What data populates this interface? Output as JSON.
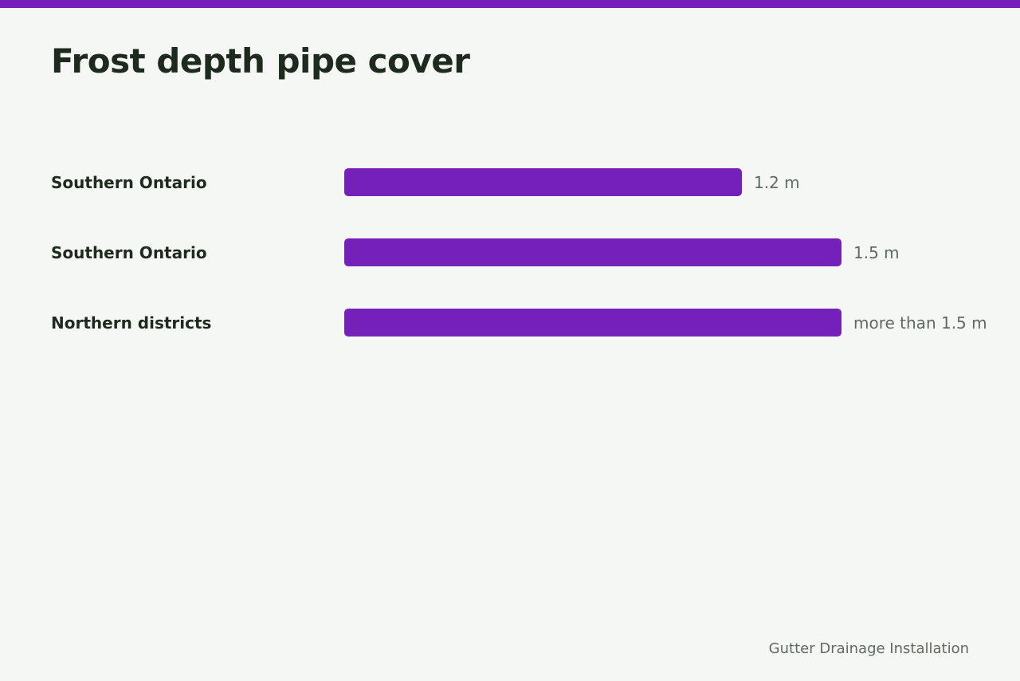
{
  "page": {
    "title": "Frost depth pipe cover",
    "footer": "Gutter Drainage Installation",
    "accent_color": "#7520b8"
  },
  "chart_data": {
    "type": "bar",
    "orientation": "horizontal",
    "title": "Frost depth pipe cover",
    "xlabel": "",
    "ylabel": "",
    "unit": "m",
    "grid": false,
    "legend": "none",
    "xlim": [
      0,
      1.5
    ],
    "categories": [
      "Southern Ontario",
      "Southern Ontario",
      "Northern districts"
    ],
    "values": [
      1.2,
      1.5,
      1.5
    ],
    "value_labels": [
      "1.2 m",
      "1.5 m",
      "more than 1.5 m"
    ],
    "bar_color": "#7520b8"
  }
}
